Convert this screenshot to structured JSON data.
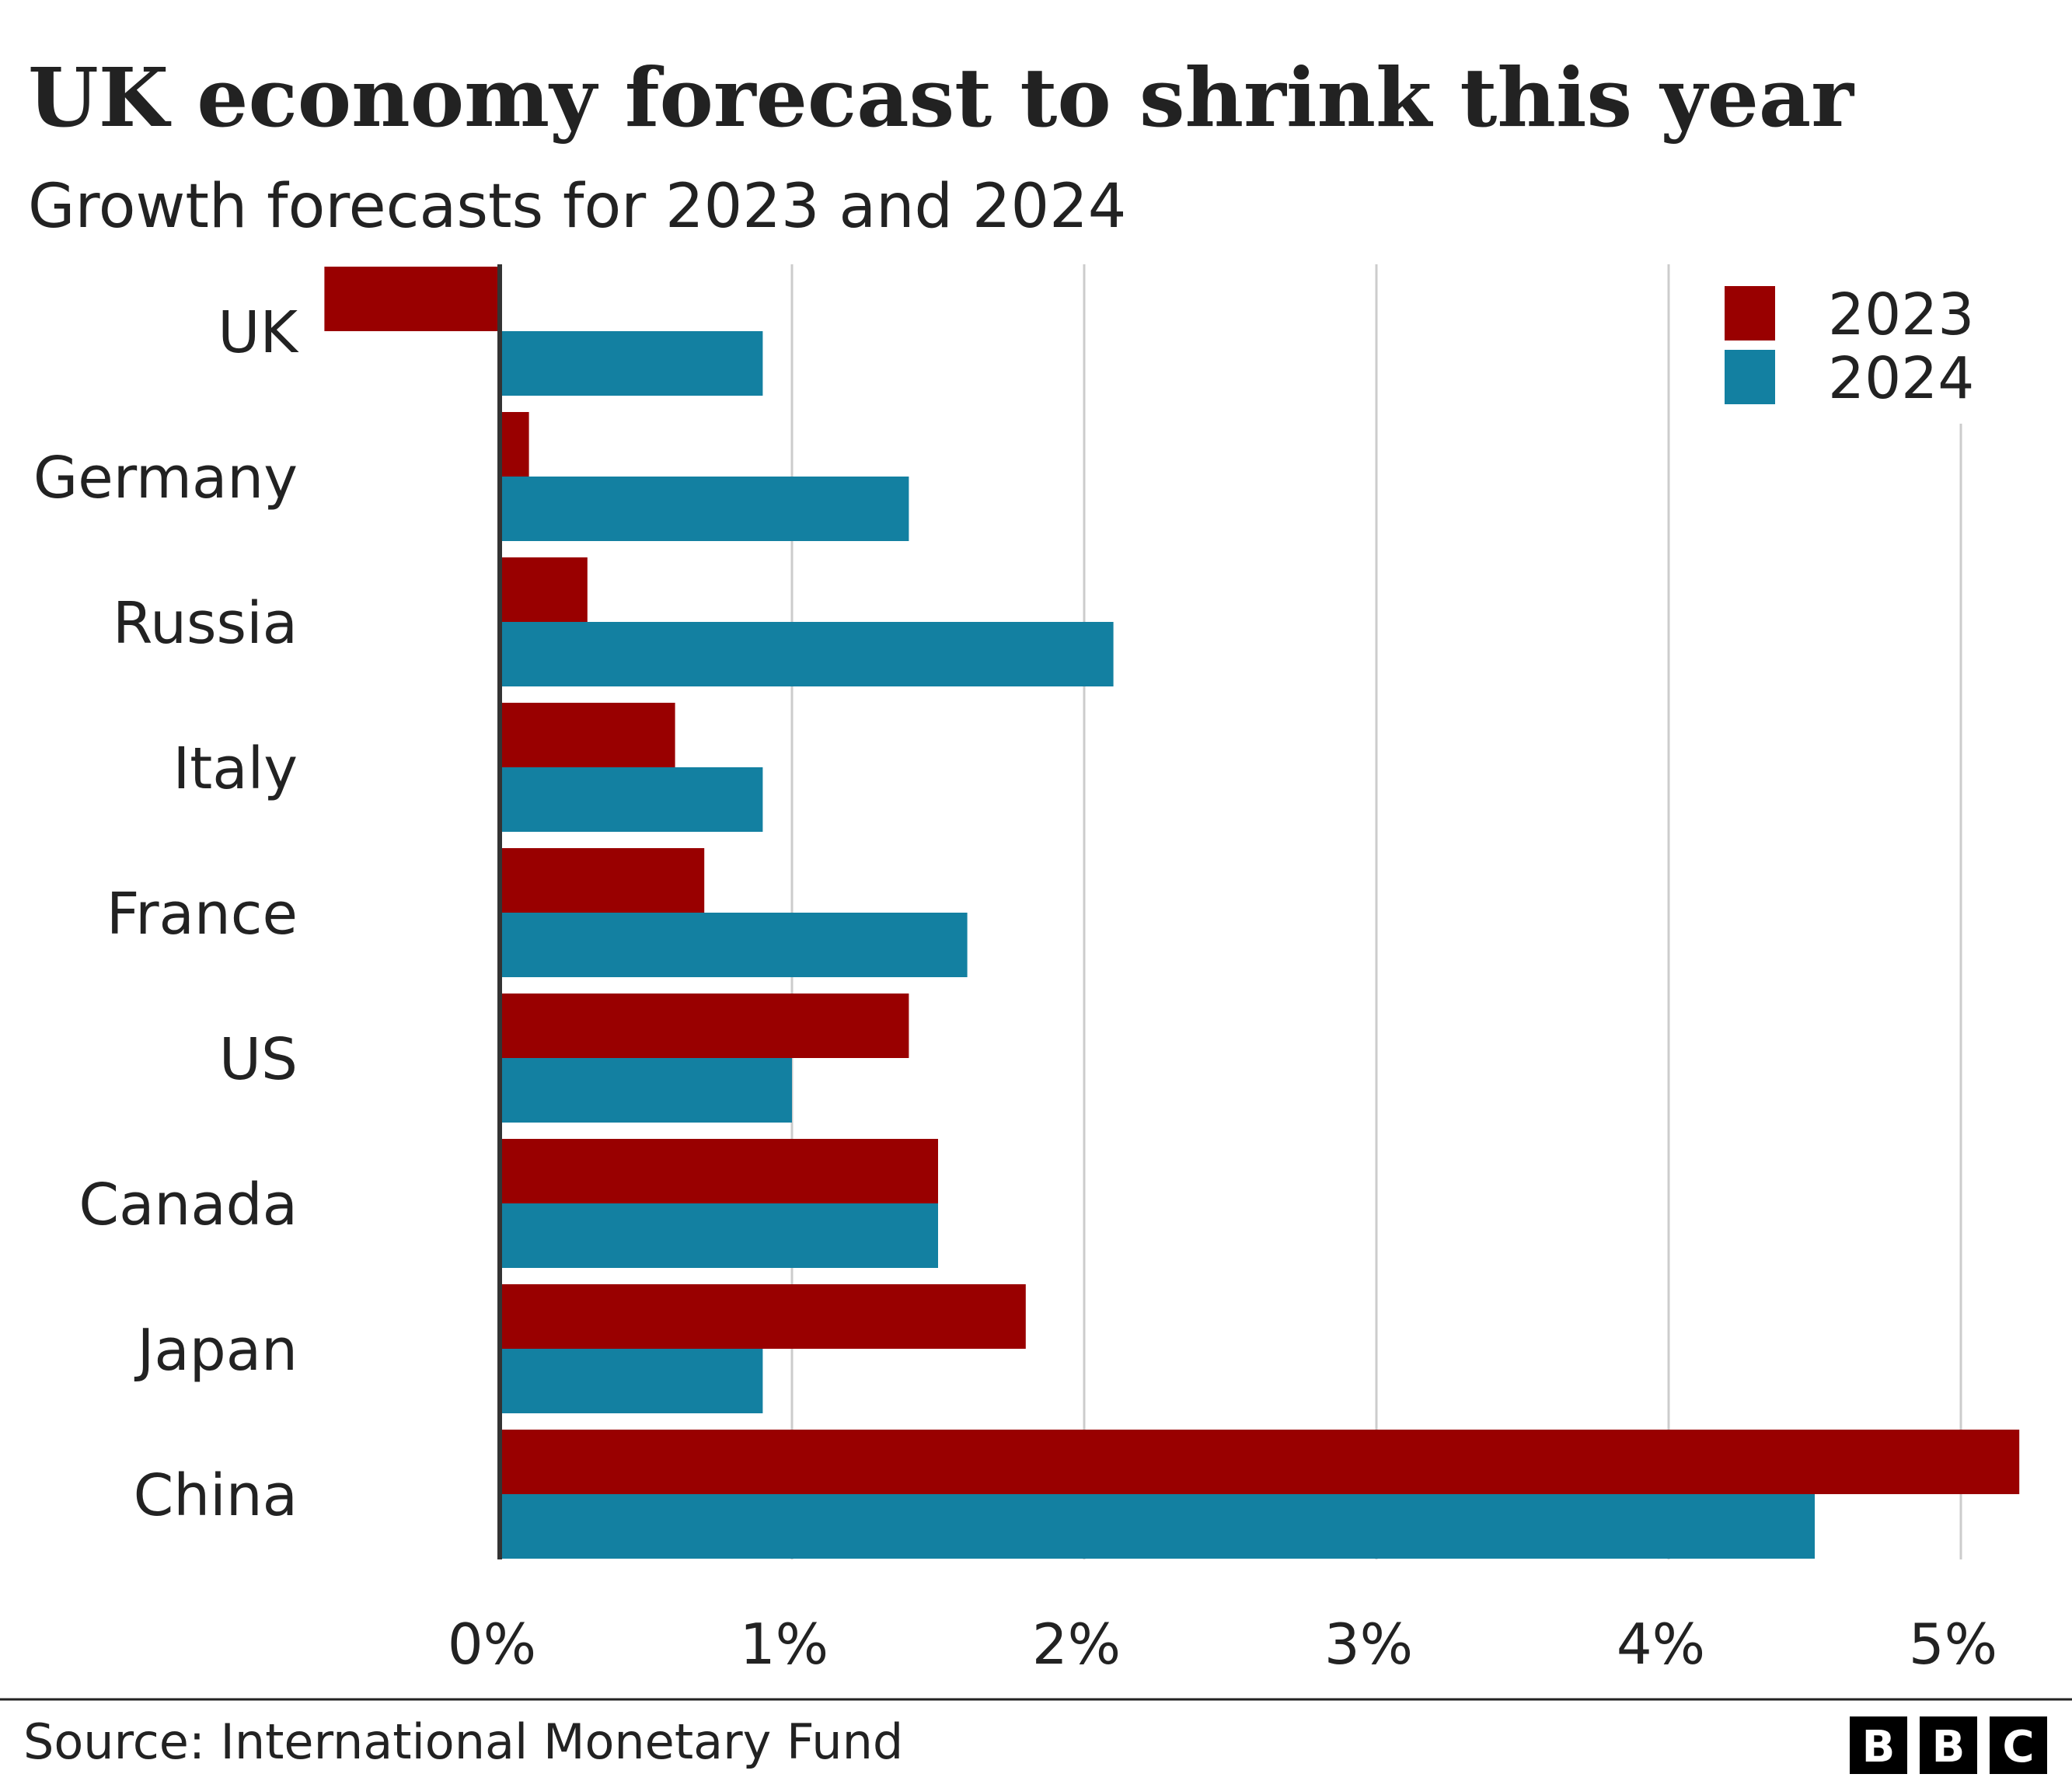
{
  "chart_data": {
    "type": "bar",
    "orientation": "horizontal",
    "title": "UK economy forecast to shrink this year",
    "subtitle": "Growth forecasts for 2023 and 2024",
    "categories": [
      "UK",
      "Germany",
      "Russia",
      "Italy",
      "France",
      "US",
      "Canada",
      "Japan",
      "China"
    ],
    "series": [
      {
        "name": "2023",
        "color": "#990000",
        "values": [
          -0.6,
          0.1,
          0.3,
          0.6,
          0.7,
          1.4,
          1.5,
          1.8,
          5.2
        ]
      },
      {
        "name": "2024",
        "color": "#1380A1",
        "values": [
          0.9,
          1.4,
          2.1,
          0.9,
          1.6,
          1.0,
          1.5,
          0.9,
          4.5
        ]
      }
    ],
    "xlim": [
      -0.6,
      5.2
    ],
    "ticks": [
      0,
      1,
      2,
      3,
      4,
      5
    ],
    "tick_labels": [
      "0%",
      "1%",
      "2%",
      "3%",
      "4%",
      "5%"
    ],
    "grid": true,
    "legend_placement": "top-right",
    "source": "Source: International Monetary Fund",
    "logo": "BBC"
  }
}
